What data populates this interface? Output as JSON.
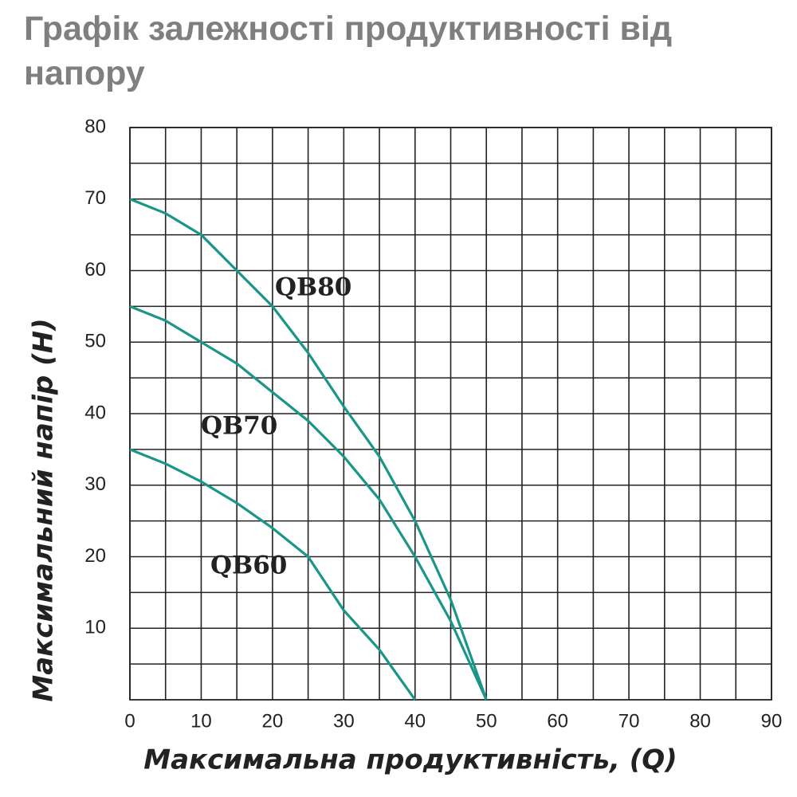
{
  "chart_data": {
    "type": "line",
    "title": "Графік залежності продуктивності від напору",
    "x_label": "Максимальна продуктивність, (Q)",
    "y_label": "Максимальний напір (H)",
    "x": [
      0,
      5,
      10,
      15,
      20,
      25,
      30,
      35,
      40,
      45,
      50
    ],
    "series": [
      {
        "name": "QB80",
        "color": "#1a9688",
        "values": [
          70,
          68,
          65,
          60,
          55,
          48.5,
          41,
          34,
          25,
          14,
          0
        ]
      },
      {
        "name": "QB70",
        "color": "#1a9688",
        "values": [
          55,
          53,
          50,
          47,
          43,
          39,
          34,
          28,
          20,
          11,
          0
        ]
      },
      {
        "name": "QB60",
        "color": "#1a9688",
        "values": [
          35,
          33,
          30.5,
          27.5,
          24,
          20,
          12.5,
          7,
          0,
          null,
          null
        ]
      }
    ],
    "xlim": [
      0,
      90
    ],
    "xticks": [
      0,
      10,
      20,
      30,
      40,
      50,
      60,
      70,
      80,
      90
    ],
    "ylim": [
      0,
      80
    ],
    "yticks": [
      10,
      20,
      30,
      40,
      50,
      60,
      70,
      80
    ],
    "grid": true
  }
}
